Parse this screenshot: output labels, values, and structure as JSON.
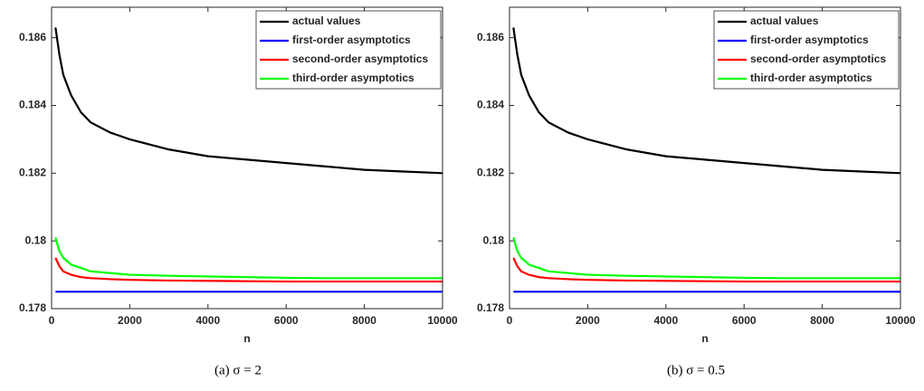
{
  "chart_data": [
    {
      "type": "line",
      "xlabel": "n",
      "caption": "(a)  σ = 2",
      "x": [
        100,
        200,
        300,
        500,
        750,
        1000,
        1500,
        2000,
        3000,
        4000,
        5000,
        6000,
        7000,
        8000,
        9000,
        10000
      ],
      "series": [
        {
          "name": "actual values",
          "color": "#000000",
          "values": [
            0.1863,
            0.1855,
            0.1849,
            0.1843,
            0.1838,
            0.1835,
            0.1832,
            0.183,
            0.1827,
            0.1825,
            0.1824,
            0.1823,
            0.1822,
            0.1821,
            0.18205,
            0.182
          ]
        },
        {
          "name": "first-order asymptotics",
          "color": "#0000ff",
          "values": [
            0.1785,
            0.1785,
            0.1785,
            0.1785,
            0.1785,
            0.1785,
            0.1785,
            0.1785,
            0.1785,
            0.1785,
            0.1785,
            0.1785,
            0.1785,
            0.1785,
            0.1785,
            0.1785
          ]
        },
        {
          "name": "second-order asymptotics",
          "color": "#ff0000",
          "values": [
            0.1795,
            0.17925,
            0.1791,
            0.179,
            0.17893,
            0.1789,
            0.17887,
            0.17885,
            0.17883,
            0.17882,
            0.17881,
            0.1788,
            0.1788,
            0.1788,
            0.1788,
            0.1788
          ]
        },
        {
          "name": "third-order asymptotics",
          "color": "#00ff00",
          "values": [
            0.1801,
            0.1797,
            0.1795,
            0.1793,
            0.1792,
            0.1791,
            0.17905,
            0.179,
            0.17897,
            0.17895,
            0.17893,
            0.17891,
            0.1789,
            0.1789,
            0.1789,
            0.1789
          ]
        }
      ],
      "xlim": [
        0,
        10000
      ],
      "xticks": [
        0,
        2000,
        4000,
        6000,
        8000,
        10000
      ],
      "ylim": [
        0.178,
        0.1869
      ],
      "yticks": [
        0.178,
        0.18,
        0.182,
        0.184,
        0.186
      ],
      "legend": "upper right"
    },
    {
      "type": "line",
      "xlabel": "n",
      "caption": "(b)  σ = 0.5",
      "x": [
        100,
        200,
        300,
        500,
        750,
        1000,
        1500,
        2000,
        3000,
        4000,
        5000,
        6000,
        7000,
        8000,
        9000,
        10000
      ],
      "series": [
        {
          "name": "actual values",
          "color": "#000000",
          "values": [
            0.1863,
            0.1855,
            0.1849,
            0.1843,
            0.1838,
            0.1835,
            0.1832,
            0.183,
            0.1827,
            0.1825,
            0.1824,
            0.1823,
            0.1822,
            0.1821,
            0.18205,
            0.182
          ]
        },
        {
          "name": "first-order asymptotics",
          "color": "#0000ff",
          "values": [
            0.1785,
            0.1785,
            0.1785,
            0.1785,
            0.1785,
            0.1785,
            0.1785,
            0.1785,
            0.1785,
            0.1785,
            0.1785,
            0.1785,
            0.1785,
            0.1785,
            0.1785,
            0.1785
          ]
        },
        {
          "name": "second-order asymptotics",
          "color": "#ff0000",
          "values": [
            0.1795,
            0.17925,
            0.1791,
            0.179,
            0.17893,
            0.1789,
            0.17887,
            0.17885,
            0.17883,
            0.17882,
            0.17881,
            0.1788,
            0.1788,
            0.1788,
            0.1788,
            0.1788
          ]
        },
        {
          "name": "third-order asymptotics",
          "color": "#00ff00",
          "values": [
            0.1801,
            0.1797,
            0.1795,
            0.1793,
            0.1792,
            0.1791,
            0.17905,
            0.179,
            0.17897,
            0.17895,
            0.17893,
            0.17891,
            0.1789,
            0.1789,
            0.1789,
            0.1789
          ]
        }
      ],
      "xlim": [
        0,
        10000
      ],
      "xticks": [
        0,
        2000,
        4000,
        6000,
        8000,
        10000
      ],
      "ylim": [
        0.178,
        0.1869
      ],
      "yticks": [
        0.178,
        0.18,
        0.182,
        0.184,
        0.186
      ],
      "legend": "upper right"
    }
  ]
}
